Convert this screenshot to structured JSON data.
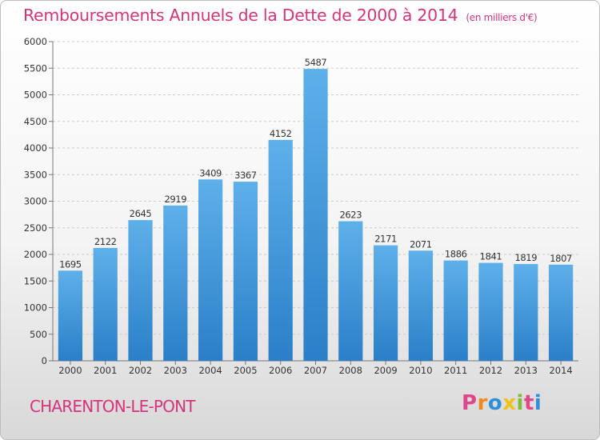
{
  "header": {
    "title": "Remboursements Annuels de la Dette de 2000 à 2014",
    "unit_note": "(en milliers d'€)"
  },
  "footer": {
    "commune": "CHARENTON-LE-PONT",
    "logo_letters": [
      "P",
      "r",
      "o",
      "x",
      "i",
      "t",
      "i"
    ]
  },
  "colors": {
    "title": "#d6347a",
    "bar_top": "#5eb0ea",
    "bar_bottom": "#2a7fc8",
    "grid": "#cccccc"
  },
  "chart_data": {
    "type": "bar",
    "title": "Remboursements Annuels de la Dette de 2000 à 2014",
    "xlabel": "",
    "ylabel": "",
    "categories": [
      "2000",
      "2001",
      "2002",
      "2003",
      "2004",
      "2005",
      "2006",
      "2007",
      "2008",
      "2009",
      "2010",
      "2011",
      "2012",
      "2013",
      "2014"
    ],
    "values": [
      1695,
      2122,
      2645,
      2919,
      3409,
      3367,
      4152,
      5487,
      2623,
      2171,
      2071,
      1886,
      1841,
      1819,
      1807
    ],
    "ylim": [
      0,
      6000
    ],
    "yticks": [
      0,
      500,
      1000,
      1500,
      2000,
      2500,
      3000,
      3500,
      4000,
      4500,
      5000,
      5500,
      6000
    ],
    "grid": true,
    "data_labels": true
  }
}
